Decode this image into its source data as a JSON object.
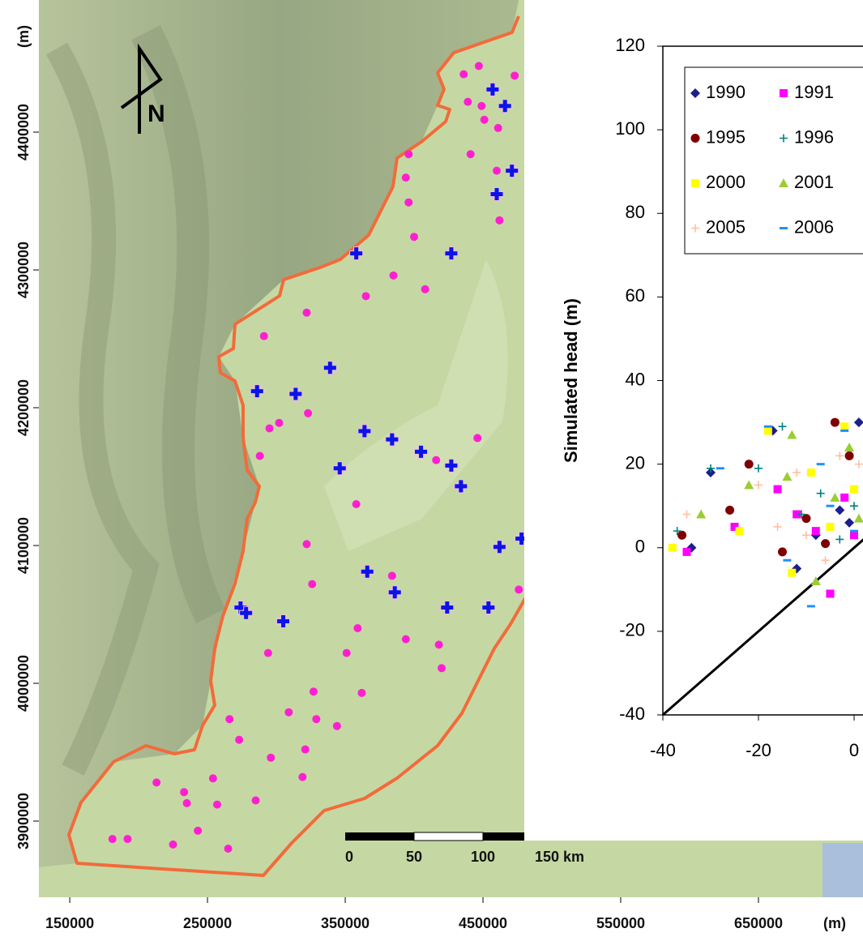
{
  "map": {
    "x_axis": {
      "lim": [
        127600,
        725900
      ],
      "ticks": [
        150000,
        250000,
        350000,
        450000,
        550000,
        650000
      ],
      "unit": "(m)"
    },
    "y_axis": {
      "lim": [
        3844700,
        4495900
      ],
      "ticks": [
        3900000,
        4000000,
        4100000,
        4200000,
        4300000,
        4400000
      ],
      "unit": "(m)"
    },
    "north_label": "N",
    "scale_bar": [
      "0",
      "50",
      "100",
      "150 km"
    ],
    "wells": {
      "color": "#ff1fd0",
      "x": [
        436000,
        447000,
        473000,
        439000,
        449000,
        451000,
        461000,
        441000,
        460000,
        396000,
        394000,
        396000,
        400000,
        385000,
        408000,
        365000,
        322000,
        291000,
        323000,
        302000,
        295000,
        288000,
        446000,
        416000,
        462000,
        322000,
        326000,
        384000,
        394000,
        418000,
        420000,
        294000,
        359000,
        351000,
        327000,
        362000,
        309000,
        329000,
        344000,
        266000,
        273000,
        296000,
        321000,
        319000,
        254000,
        213000,
        233000,
        235000,
        257000,
        285000,
        243000,
        225000,
        265000,
        181000,
        192000,
        476000,
        358000
      ],
      "y": [
        4442000,
        4448000,
        4441000,
        4422000,
        4419000,
        4409000,
        4403000,
        4384000,
        4372000,
        4384000,
        4367000,
        4349000,
        4324000,
        4296000,
        4286000,
        4281000,
        4269000,
        4252000,
        4196000,
        4189000,
        4185000,
        4165000,
        4178000,
        4162000,
        4336000,
        4101000,
        4072000,
        4078000,
        4032000,
        4028000,
        4011000,
        4022000,
        4040000,
        4022000,
        3994000,
        3993000,
        3979000,
        3974000,
        3969000,
        3974000,
        3959000,
        3946000,
        3952000,
        3932000,
        3931000,
        3928000,
        3921000,
        3913000,
        3912000,
        3915000,
        3893000,
        3883000,
        3880000,
        3887000,
        3887000,
        4068000,
        4130000
      ]
    },
    "gauges": {
      "color": "#0a14e6",
      "x": [
        457000,
        466000,
        471000,
        460000,
        358000,
        427000,
        339000,
        286000,
        314000,
        364000,
        384000,
        405000,
        427000,
        346000,
        434000,
        478000,
        462000,
        366000,
        386000,
        424000,
        454000,
        274000,
        278000,
        305000
      ],
      "y": [
        4431000,
        4419000,
        4372000,
        4355000,
        4312000,
        4312000,
        4229000,
        4212000,
        4210000,
        4183000,
        4177000,
        4168000,
        4158000,
        4156000,
        4143000,
        4105000,
        4099000,
        4081000,
        4066000,
        4055000,
        4055000,
        4055000,
        4051000,
        4045000
      ]
    }
  },
  "chart_data": {
    "type": "scatter",
    "ylabel": "Simulated head (m)",
    "xlim": [
      -40,
      120
    ],
    "ylim": [
      -40,
      120
    ],
    "xticks": [
      -40,
      -20,
      0
    ],
    "yticks": [
      -40,
      -20,
      0,
      20,
      40,
      60,
      80,
      100,
      120
    ],
    "legend": "upper left",
    "identity_line": true,
    "series": [
      {
        "name": "1990",
        "color": "#1c1f8c",
        "marker": "diamond",
        "x": [
          -30,
          -17,
          -34,
          -12,
          -8,
          -3,
          -1,
          1
        ],
        "y": [
          18,
          28,
          0,
          -5,
          3,
          9,
          6,
          30
        ]
      },
      {
        "name": "1991",
        "color": "#ff00ff",
        "marker": "square",
        "x": [
          -35,
          -16,
          -12,
          -5,
          -8,
          -2,
          0,
          -25
        ],
        "y": [
          -1,
          14,
          8,
          -11,
          4,
          12,
          3,
          5
        ]
      },
      {
        "name": "1995",
        "color": "#7f0000",
        "marker": "circle",
        "x": [
          -36,
          -26,
          -22,
          -15,
          -4,
          -10,
          -1,
          -6
        ],
        "y": [
          3,
          9,
          20,
          -1,
          30,
          7,
          22,
          1
        ]
      },
      {
        "name": "1996",
        "color": "#008080",
        "marker": "plus",
        "x": [
          -37,
          -30,
          -20,
          -15,
          -11,
          -3,
          -7,
          0
        ],
        "y": [
          4,
          19,
          19,
          29,
          8,
          2,
          13,
          10
        ]
      },
      {
        "name": "2000",
        "color": "#ffff00",
        "marker": "square",
        "x": [
          -38,
          -18,
          -13,
          -24,
          -9,
          -2,
          -5,
          0
        ],
        "y": [
          0,
          28,
          -6,
          4,
          18,
          29,
          5,
          14
        ]
      },
      {
        "name": "2001",
        "color": "#9acd32",
        "marker": "triangle",
        "x": [
          -32,
          -22,
          -14,
          -8,
          -13,
          -4,
          -1,
          1
        ],
        "y": [
          8,
          15,
          17,
          -8,
          27,
          12,
          24,
          7
        ]
      },
      {
        "name": "2005",
        "color": "#ffbf9f",
        "marker": "plus",
        "x": [
          -35,
          -20,
          -10,
          -12,
          -6,
          -3,
          1,
          -16
        ],
        "y": [
          8,
          15,
          3,
          18,
          -3,
          22,
          20,
          5
        ]
      },
      {
        "name": "2006",
        "color": "#1e90ff",
        "marker": "dash",
        "x": [
          -28,
          -18,
          -9,
          -14,
          -7,
          -2,
          -5,
          0
        ],
        "y": [
          19,
          29,
          -14,
          -3,
          20,
          28,
          10,
          4
        ]
      }
    ]
  }
}
